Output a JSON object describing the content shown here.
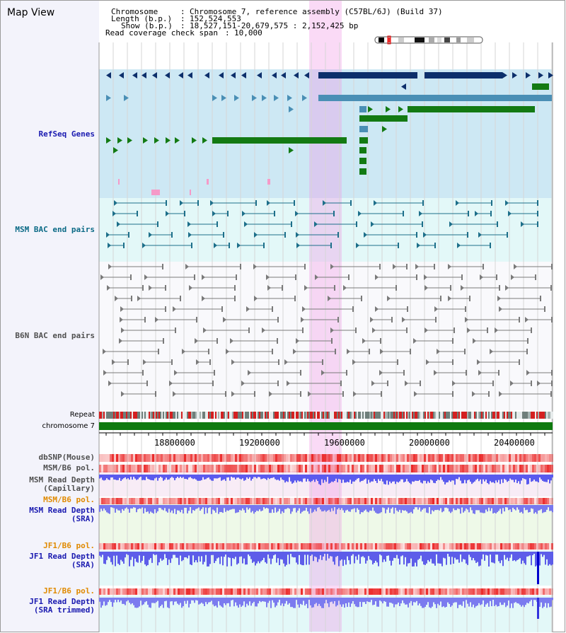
{
  "header": {
    "title": "Map View",
    "chromosome_label": "Chromosome",
    "chromosome_value": "Chromosome 7, reference assembly (C57BL/6J) (Build 37)",
    "length_label": "Length (b.p.)",
    "length_value": "152,524,553",
    "show_label": "Show (b.p.)",
    "show_value": "18,527,151-20,679,575 : 2,152,425 bp",
    "coverage_label": "Read coverage check span",
    "coverage_value": "10,000"
  },
  "tracks": {
    "refseq": "RefSeq Genes",
    "msm_bac": "MSM BAC end pairs",
    "b6n_bac": "B6N BAC end pairs",
    "repeat": "Repeat",
    "chromosome": "chromosome 7",
    "dbsnp": "dbSNP(Mouse)",
    "msm_b6_pol": "MSM/B6 pol.",
    "msm_depth_cap_1": "MSM Read Depth",
    "msm_depth_cap_2": "(Capillary)",
    "msm_b6_pol_2": "MSM/B6 pol.",
    "msm_depth_sra_1": "MSM Read Depth",
    "msm_depth_sra_2": "(SRA)",
    "jf1_b6_pol": "JF1/B6 pol.",
    "jf1_depth_sra_1": "JF1 Read Depth",
    "jf1_depth_sra_2": "(SRA)",
    "jf1_b6_pol_2": "JF1/B6 pol.",
    "jf1_depth_trim_1": "JF1 Read Depth",
    "jf1_depth_trim_2": "(SRA trimmed)"
  },
  "axis": {
    "ticks": [
      "18800000",
      "19200000",
      "19600000",
      "20000000",
      "20400000"
    ]
  },
  "colors": {
    "refseq_bg": "#cde8f4",
    "msm_bg": "#e3f8f8",
    "highlight": "#f3c6ee",
    "gene_dark": "#0d2f6b",
    "gene_mid": "#4a8fb5",
    "gene_green": "#137a13",
    "chromosome_bar": "#0f7a0f",
    "depth_blue": "#2a2ae6"
  }
}
